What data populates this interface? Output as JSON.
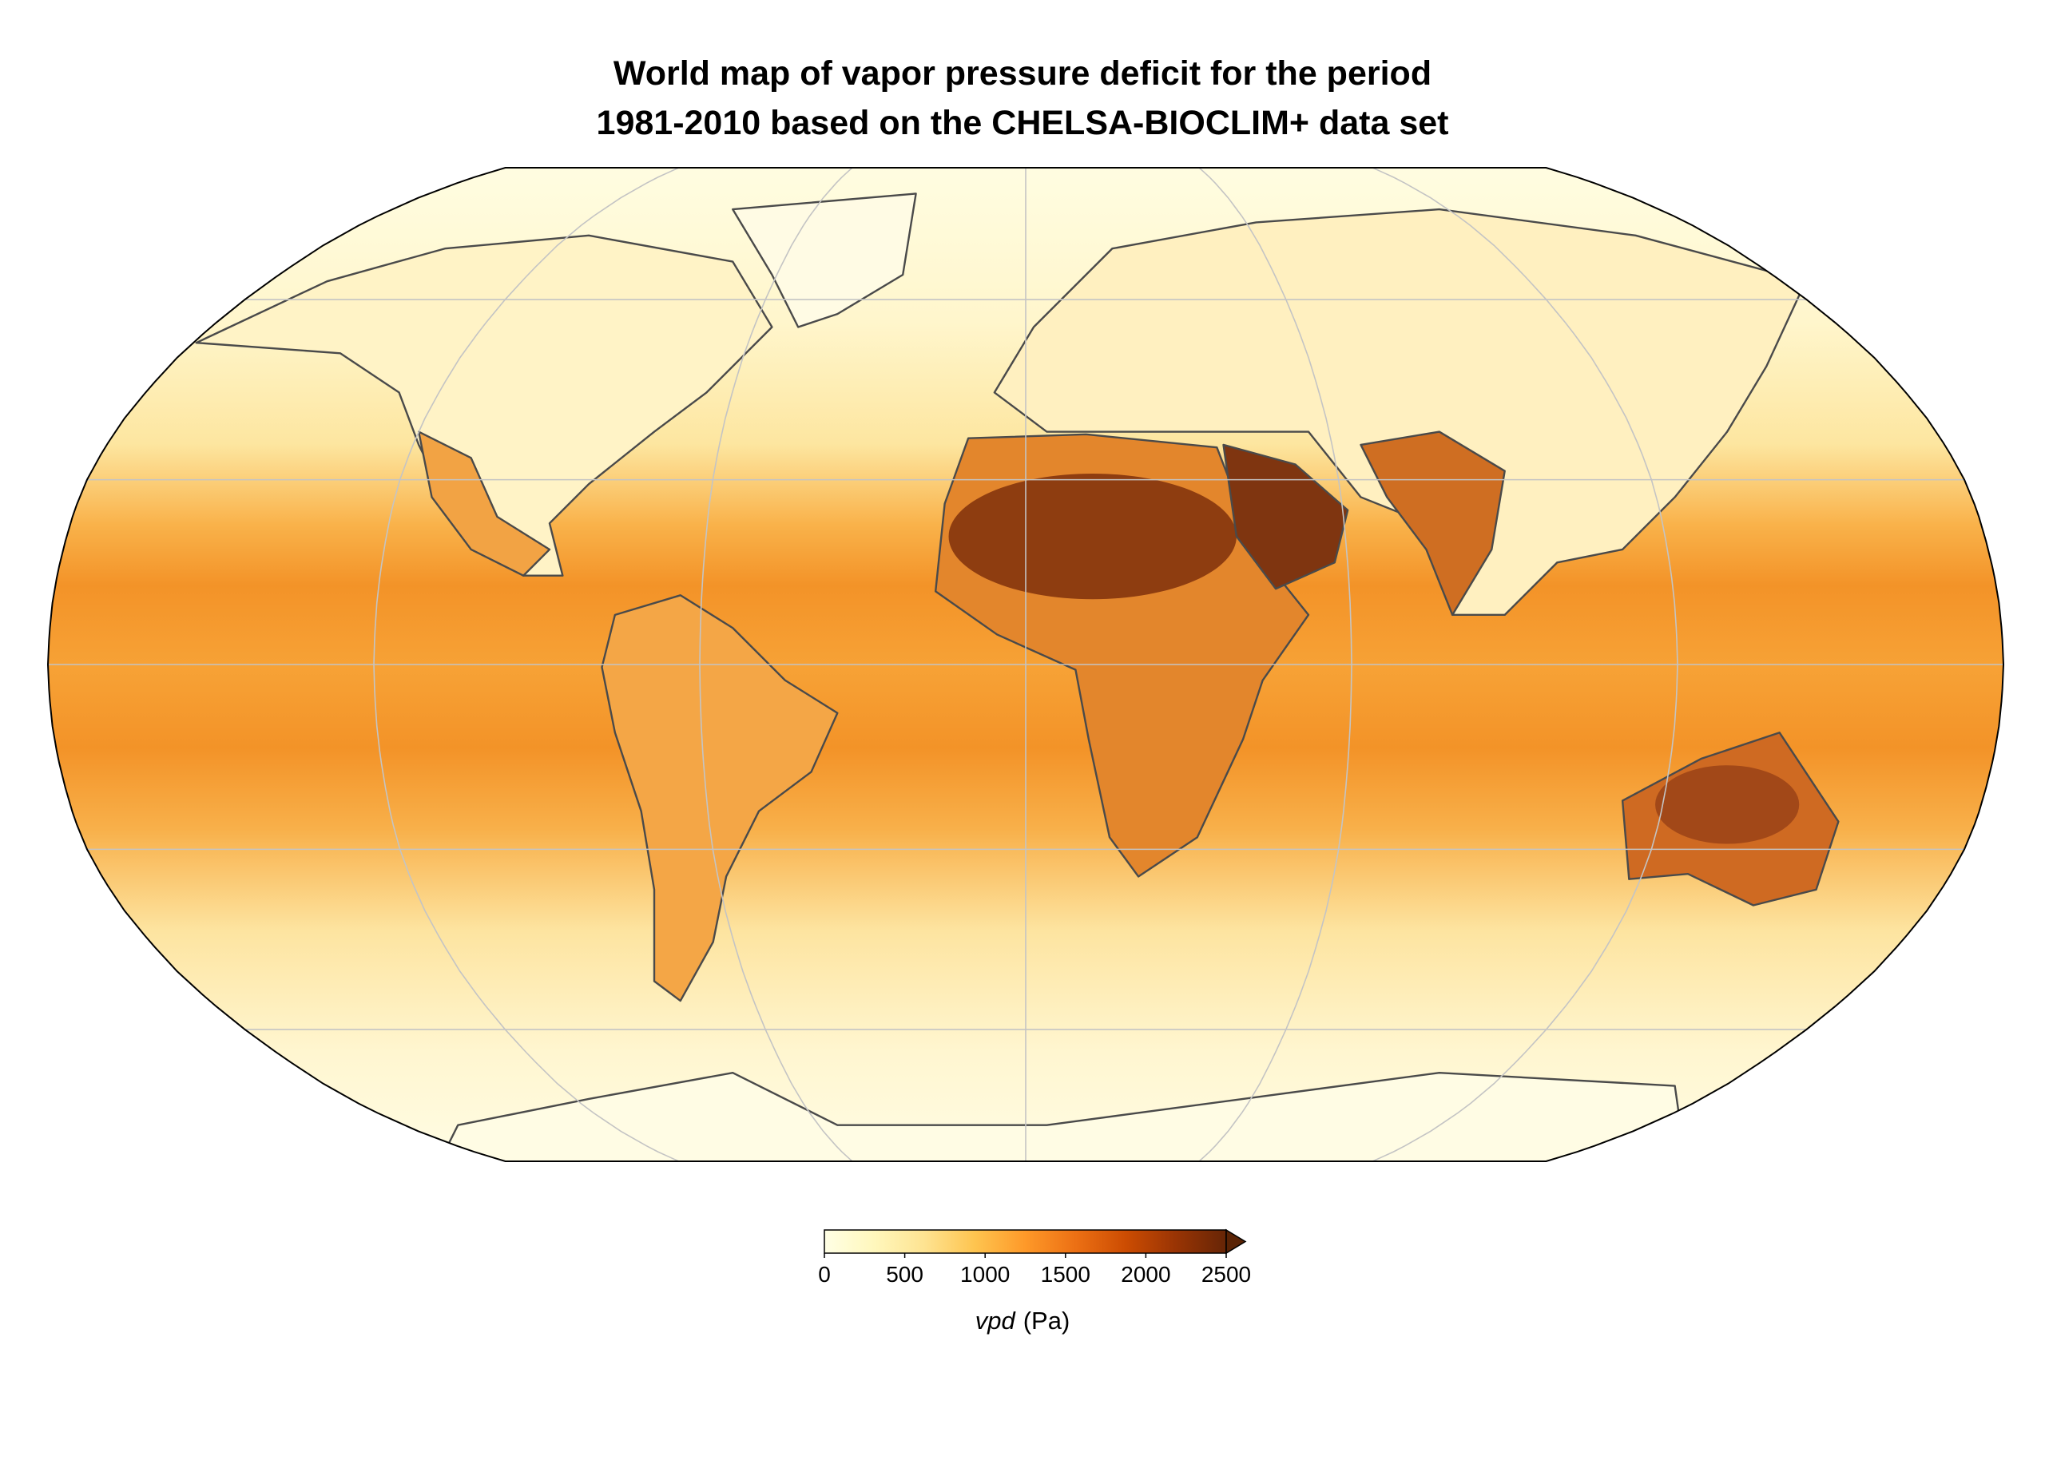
{
  "title": [
    "World map of vapor pressure deficit for the period",
    "1981-2010 based on the CHELSA-BIOCLIM+ data set"
  ],
  "colorbar": {
    "lim": [
      0,
      2500
    ],
    "ticks": [
      0,
      500,
      1000,
      1500,
      2000,
      2500
    ],
    "colormap": [
      "#ffffe5",
      "#fff7bc",
      "#fee391",
      "#fec44f",
      "#fe9929",
      "#ec7014",
      "#cc4c02",
      "#993404",
      "#662506"
    ],
    "extend": "max",
    "extend_color": "#5a2305",
    "label": {
      "variable": "vpd",
      "unit": "(Pa)"
    }
  }
}
